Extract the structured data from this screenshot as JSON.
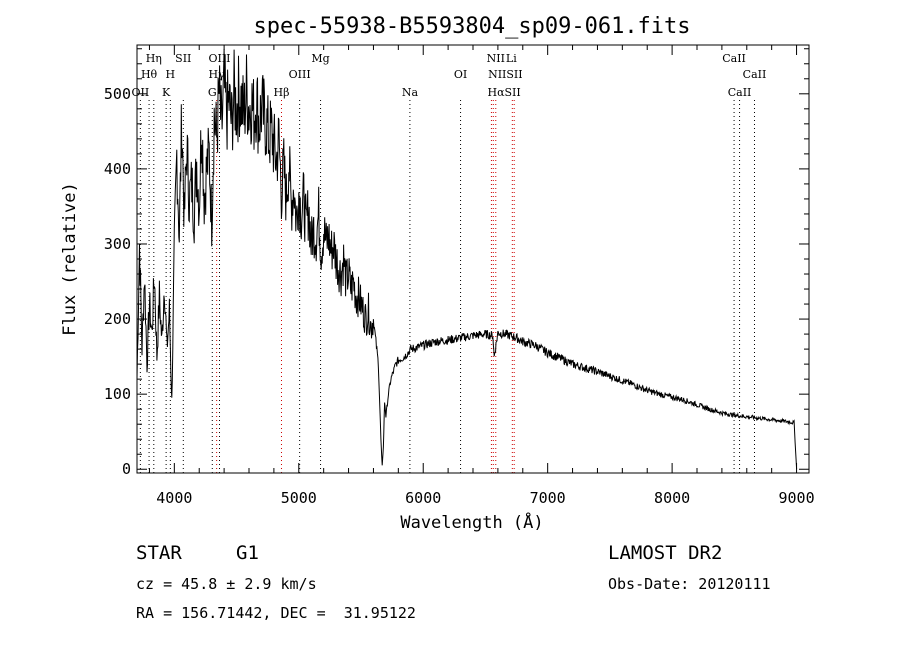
{
  "chart_data": {
    "type": "line",
    "title": "spec-55938-B5593804_sp09-061.fits",
    "xlabel": "Wavelength (Å)",
    "ylabel": "Flux (relative)",
    "xlim": [
      3700,
      9100
    ],
    "ylim": [
      -5,
      565
    ],
    "xticks": [
      4000,
      5000,
      6000,
      7000,
      8000,
      9000
    ],
    "yticks": [
      0,
      100,
      200,
      300,
      400,
      500
    ],
    "grid": false,
    "legend": "none",
    "series": [
      {
        "x": [
          3700,
          3720,
          3740,
          3760,
          3780,
          3800,
          3820,
          3840,
          3860,
          3880,
          3900,
          3920,
          3940,
          3960,
          3980,
          4000,
          4020,
          4040,
          4060,
          4080,
          4100,
          4120,
          4140,
          4160,
          4180,
          4200,
          4220,
          4240,
          4260,
          4280,
          4300,
          4320,
          4340,
          4360,
          4380,
          4400,
          4420,
          4440,
          4460,
          4480,
          4500,
          4520,
          4540,
          4560,
          4580,
          4600,
          4620,
          4640,
          4660,
          4680,
          4700,
          4720,
          4740,
          4760,
          4780,
          4800,
          4820,
          4840,
          4860,
          4880,
          4900,
          4920,
          4940,
          4960,
          4980,
          5000,
          5020,
          5040,
          5060,
          5080,
          5100,
          5120,
          5140,
          5160,
          5180,
          5200,
          5220,
          5240,
          5260,
          5280,
          5300,
          5320,
          5340,
          5360,
          5380,
          5400,
          5420,
          5440,
          5460,
          5480,
          5500,
          5520,
          5540,
          5560,
          5580,
          5600,
          5620,
          5640,
          5660,
          5670,
          5680,
          5690,
          5700,
          5720,
          5740,
          5760,
          5780,
          5800,
          5850,
          5900,
          5950,
          6000,
          6100,
          6200,
          6300,
          6400,
          6500,
          6560,
          6570,
          6600,
          6650,
          6700,
          6750,
          6800,
          6900,
          7000,
          7100,
          7200,
          7300,
          7400,
          7500,
          7600,
          7700,
          7800,
          7900,
          8000,
          8100,
          8200,
          8300,
          8400,
          8500,
          8600,
          8700,
          8800,
          8900,
          8980,
          9000
        ],
        "y": [
          120,
          300,
          160,
          260,
          140,
          220,
          180,
          260,
          150,
          230,
          170,
          250,
          160,
          210,
          90,
          290,
          420,
          310,
          470,
          330,
          430,
          360,
          380,
          340,
          410,
          350,
          470,
          360,
          400,
          420,
          330,
          470,
          440,
          500,
          450,
          510,
          470,
          490,
          460,
          500,
          480,
          500,
          490,
          470,
          505,
          480,
          490,
          470,
          495,
          460,
          480,
          470,
          460,
          440,
          450,
          430,
          410,
          440,
          370,
          400,
          360,
          410,
          350,
          380,
          330,
          370,
          340,
          360,
          320,
          350,
          300,
          320,
          310,
          340,
          290,
          320,
          300,
          310,
          290,
          300,
          280,
          270,
          260,
          280,
          250,
          260,
          240,
          250,
          230,
          230,
          220,
          210,
          200,
          210,
          190,
          200,
          170,
          140,
          40,
          5,
          30,
          90,
          70,
          100,
          120,
          130,
          140,
          145,
          150,
          160,
          162,
          165,
          170,
          172,
          175,
          178,
          180,
          178,
          150,
          182,
          180,
          178,
          175,
          170,
          165,
          155,
          148,
          140,
          135,
          130,
          124,
          118,
          112,
          105,
          100,
          96,
          92,
          86,
          80,
          75,
          72,
          70,
          68,
          66,
          64,
          62,
          0
        ]
      }
    ],
    "line_labels": [
      {
        "text": "Hη",
        "wavelength": 3835,
        "row": 1
      },
      {
        "text": "Hθ",
        "wavelength": 3797,
        "row": 2
      },
      {
        "text": "OII",
        "wavelength": 3727,
        "row": 3
      },
      {
        "text": "SII",
        "wavelength": 4072,
        "row": 1
      },
      {
        "text": "H",
        "wavelength": 3968,
        "row": 2
      },
      {
        "text": "K",
        "wavelength": 3934,
        "row": 3
      },
      {
        "text": "OIII",
        "wavelength": 4363,
        "row": 1
      },
      {
        "text": "Hγ",
        "wavelength": 4340,
        "row": 2
      },
      {
        "text": "G",
        "wavelength": 4305,
        "row": 3
      },
      {
        "text": "Mg",
        "wavelength": 5175,
        "row": 1
      },
      {
        "text": "OIII",
        "wavelength": 5007,
        "row": 2
      },
      {
        "text": "Hβ",
        "wavelength": 4861,
        "row": 3
      },
      {
        "text": "Na",
        "wavelength": 5893,
        "row": 3
      },
      {
        "text": "NII",
        "wavelength": 6583,
        "row": 1
      },
      {
        "text": "Li",
        "wavelength": 6708,
        "row": 1
      },
      {
        "text": "OI",
        "wavelength": 6300,
        "row": 2
      },
      {
        "text": "NIISII",
        "wavelength": 6660,
        "row": 2
      },
      {
        "text": "HαSII",
        "wavelength": 6650,
        "row": 3
      },
      {
        "text": "CaII",
        "wavelength": 8498,
        "row": 1
      },
      {
        "text": "CaII",
        "wavelength": 8662,
        "row": 2
      },
      {
        "text": "CaII",
        "wavelength": 8542,
        "row": 3
      }
    ],
    "marker_lines": [
      {
        "wavelength": 3727,
        "color": "#000000"
      },
      {
        "wavelength": 3797,
        "color": "#000000"
      },
      {
        "wavelength": 3835,
        "color": "#000000"
      },
      {
        "wavelength": 3934,
        "color": "#000000"
      },
      {
        "wavelength": 3968,
        "color": "#000000"
      },
      {
        "wavelength": 4072,
        "color": "#000000"
      },
      {
        "wavelength": 4305,
        "color": "#000000"
      },
      {
        "wavelength": 4340,
        "color": "#cc0000"
      },
      {
        "wavelength": 4363,
        "color": "#000000"
      },
      {
        "wavelength": 4861,
        "color": "#cc0000"
      },
      {
        "wavelength": 5007,
        "color": "#000000"
      },
      {
        "wavelength": 5175,
        "color": "#000000"
      },
      {
        "wavelength": 5893,
        "color": "#000000"
      },
      {
        "wavelength": 6300,
        "color": "#000000"
      },
      {
        "wavelength": 6548,
        "color": "#cc0000"
      },
      {
        "wavelength": 6563,
        "color": "#cc0000"
      },
      {
        "wavelength": 6583,
        "color": "#cc0000"
      },
      {
        "wavelength": 6716,
        "color": "#cc0000"
      },
      {
        "wavelength": 6731,
        "color": "#cc0000"
      },
      {
        "wavelength": 8498,
        "color": "#000000"
      },
      {
        "wavelength": 8542,
        "color": "#000000"
      },
      {
        "wavelength": 8662,
        "color": "#000000"
      }
    ]
  },
  "info": {
    "object_class": "STAR",
    "subclass": "G1",
    "survey": "LAMOST DR2",
    "cz": "cz = 45.8 ± 2.9 km/s",
    "obs_date": "Obs-Date: 20120111",
    "coords": "RA = 156.71442, DEC =  31.95122"
  }
}
